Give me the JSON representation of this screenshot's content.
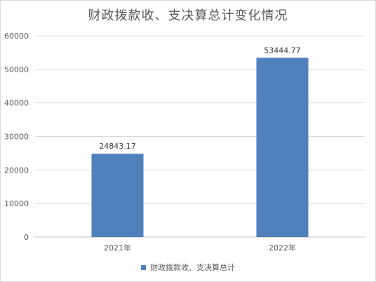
{
  "chart_data": {
    "type": "bar",
    "title": "财政拨款收、支决算总计变化情况",
    "categories": [
      "2021年",
      "2022年"
    ],
    "series": [
      {
        "name": "财政拨款收、支决算总计",
        "values": [
          24843.17,
          53444.77
        ],
        "data_labels": [
          "24843.17",
          "53444.77"
        ],
        "color": "#4f81bd"
      }
    ],
    "y_ticks": [
      "0",
      "10000",
      "20000",
      "30000",
      "40000",
      "50000",
      "60000"
    ],
    "ylim": [
      0,
      60000
    ],
    "grid": true,
    "legend_position": "bottom",
    "xlabel": "",
    "ylabel": ""
  }
}
